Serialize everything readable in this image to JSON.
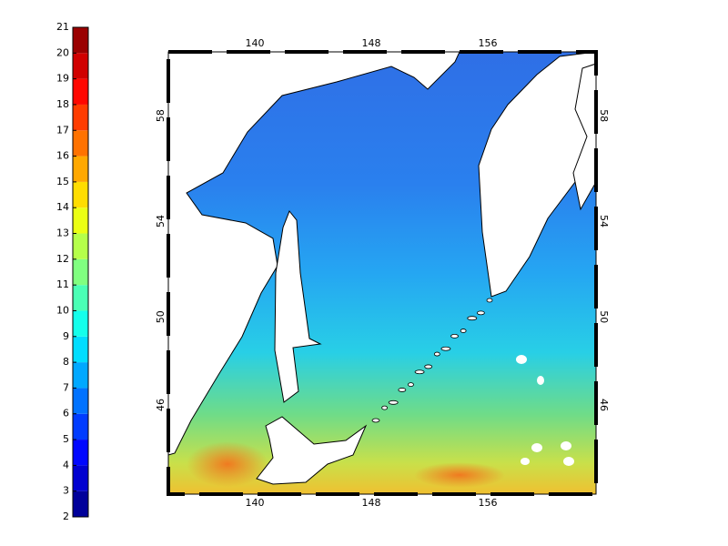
{
  "colorbar": {
    "ticks": [
      2,
      3,
      4,
      5,
      6,
      7,
      8,
      9,
      10,
      11,
      12,
      13,
      14,
      15,
      16,
      17,
      18,
      19,
      20,
      21
    ]
  },
  "map": {
    "lon_ticks": [
      140,
      148,
      156
    ],
    "lat_ticks": [
      46,
      50,
      54,
      58
    ]
  }
}
